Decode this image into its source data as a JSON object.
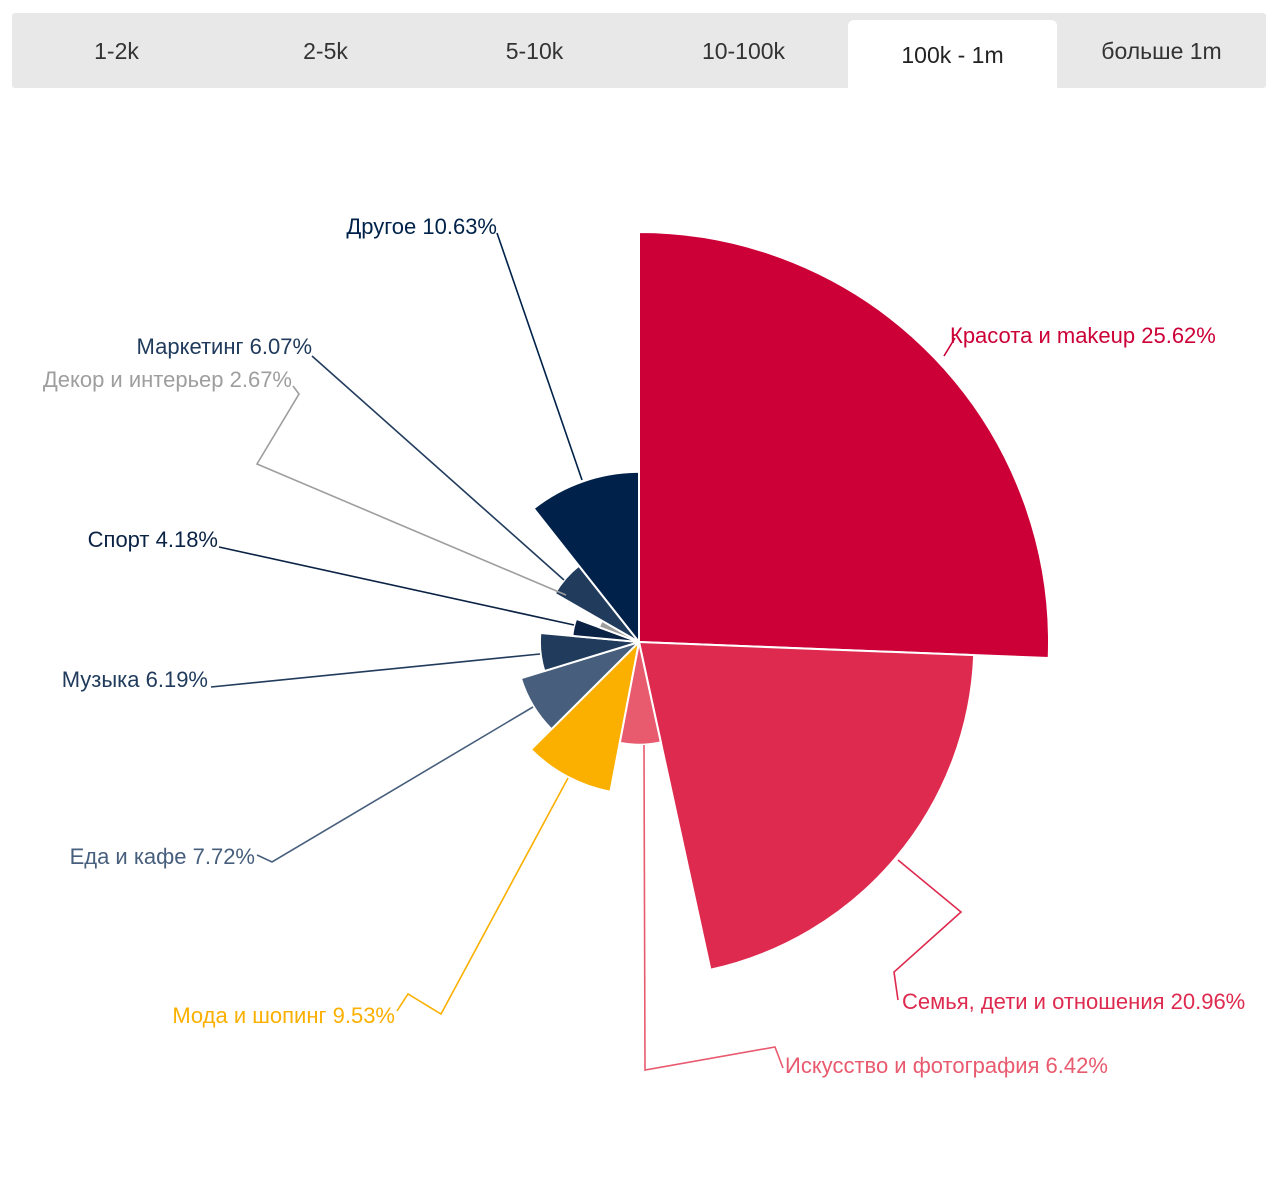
{
  "tabs": {
    "items": [
      {
        "label": "1-2k"
      },
      {
        "label": "2-5k"
      },
      {
        "label": "5-10k"
      },
      {
        "label": "10-100k"
      },
      {
        "label": "100k - 1m"
      },
      {
        "label": "больше 1m"
      }
    ],
    "active_index": 4
  },
  "chart_data": {
    "type": "pie",
    "variant": "variable-radius pie (radius proportional to share)",
    "title": "",
    "value_unit": "%",
    "slices": [
      {
        "name": "Красота и makeup",
        "value": 25.62,
        "label": "Красота и makeup 25.62%",
        "color": "#cc0036"
      },
      {
        "name": "Семья, дети и отношения",
        "value": 20.96,
        "label": "Семья, дети и отношения 20.96%",
        "color": "#de2a4e"
      },
      {
        "name": "Искусство и фотография",
        "value": 6.42,
        "label": "Искусство и фотография 6.42%",
        "color": "#e85a6e"
      },
      {
        "name": "Мода и шопинг",
        "value": 9.53,
        "label": "Мода и шопинг 9.53%",
        "color": "#fbb000"
      },
      {
        "name": "Еда и кафе",
        "value": 7.72,
        "label": "Еда и кафе 7.72%",
        "color": "#475f7d"
      },
      {
        "name": "Музыка",
        "value": 6.19,
        "label": "Музыка 6.19%",
        "color": "#203b5c"
      },
      {
        "name": "Спорт",
        "value": 4.18,
        "label": "Спорт 4.18%",
        "color": "#0a2244"
      },
      {
        "name": "Декор и интерьер",
        "value": 2.67,
        "label": "Декор и интерьер 2.67%",
        "color": "#9e9e9e"
      },
      {
        "name": "Маркетинг",
        "value": 6.07,
        "label": "Маркетинг 6.07%",
        "color": "#203b5c"
      },
      {
        "name": "Другое",
        "value": 10.63,
        "label": "Другое 10.63%",
        "color": "#00224a"
      }
    ]
  }
}
